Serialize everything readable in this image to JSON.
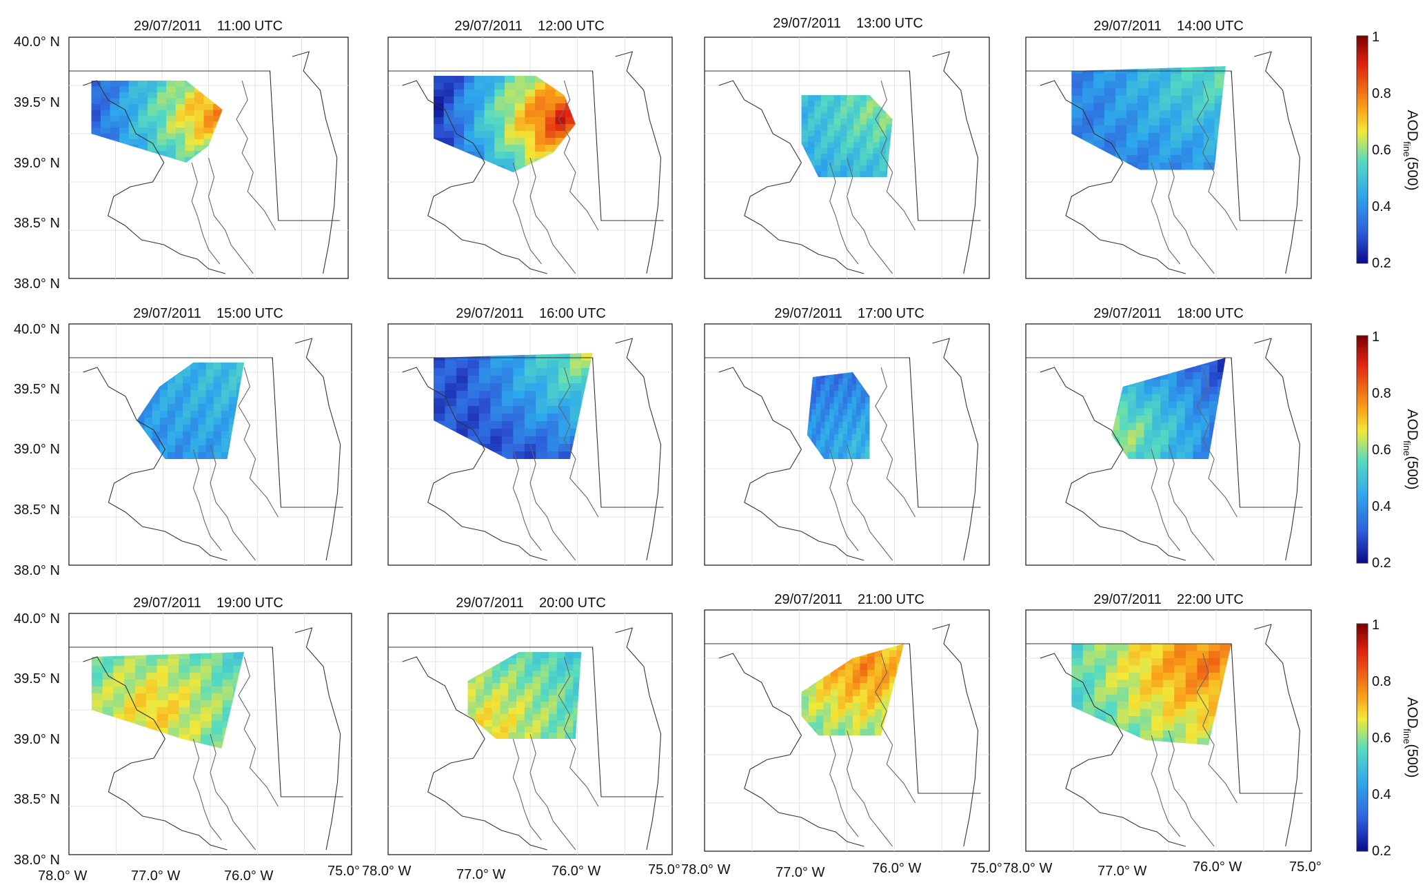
{
  "map": {
    "lat_labels": [
      "40.0° N",
      "39.5° N",
      "39.0° N",
      "38.5° N",
      "38.0° N"
    ],
    "lon_labels": [
      "78.0° W",
      "77.0° W",
      "76.0° W",
      "75.0°"
    ],
    "panels": [
      {
        "id": "p1",
        "title": "29/07/2011    11:00 UTC",
        "mean_aod": 0.45
      },
      {
        "id": "p2",
        "title": "29/07/2011    12:00 UTC",
        "mean_aod": 0.42
      },
      {
        "id": "p3",
        "title": "29/07/2011    13:00 UTC",
        "mean_aod": 0.44
      },
      {
        "id": "p4",
        "title": "29/07/2011    14:00 UTC",
        "mean_aod": 0.45
      },
      {
        "id": "p5",
        "title": "29/07/2011    15:00 UTC",
        "mean_aod": 0.44
      },
      {
        "id": "p6",
        "title": "29/07/2011    16:00 UTC",
        "mean_aod": 0.42
      },
      {
        "id": "p7",
        "title": "29/07/2011    17:00 UTC",
        "mean_aod": 0.4
      },
      {
        "id": "p8",
        "title": "29/07/2011    18:00 UTC",
        "mean_aod": 0.43
      },
      {
        "id": "p9",
        "title": "29/07/2011    19:00 UTC",
        "mean_aod": 0.62
      },
      {
        "id": "p10",
        "title": "29/07/2011    20:00 UTC",
        "mean_aod": 0.6
      },
      {
        "id": "p11",
        "title": "29/07/2011    21:00 UTC",
        "mean_aod": 0.66
      },
      {
        "id": "p12",
        "title": "29/07/2011    22:00 UTC",
        "mean_aod": 0.68
      }
    ],
    "colorbar": {
      "label_main": "AOD",
      "label_sub": "fine",
      "label_tail": "(500)",
      "ticks": [
        "1",
        "0.8",
        "0.6",
        "0.4",
        "0.2"
      ],
      "range": [
        0.2,
        1.0
      ],
      "colors": [
        "#7a0000",
        "#e02010",
        "#f9a21a",
        "#f2e838",
        "#57dbbf",
        "#2ea8ec",
        "#2f5fdc",
        "#0a0a8c"
      ]
    }
  }
}
